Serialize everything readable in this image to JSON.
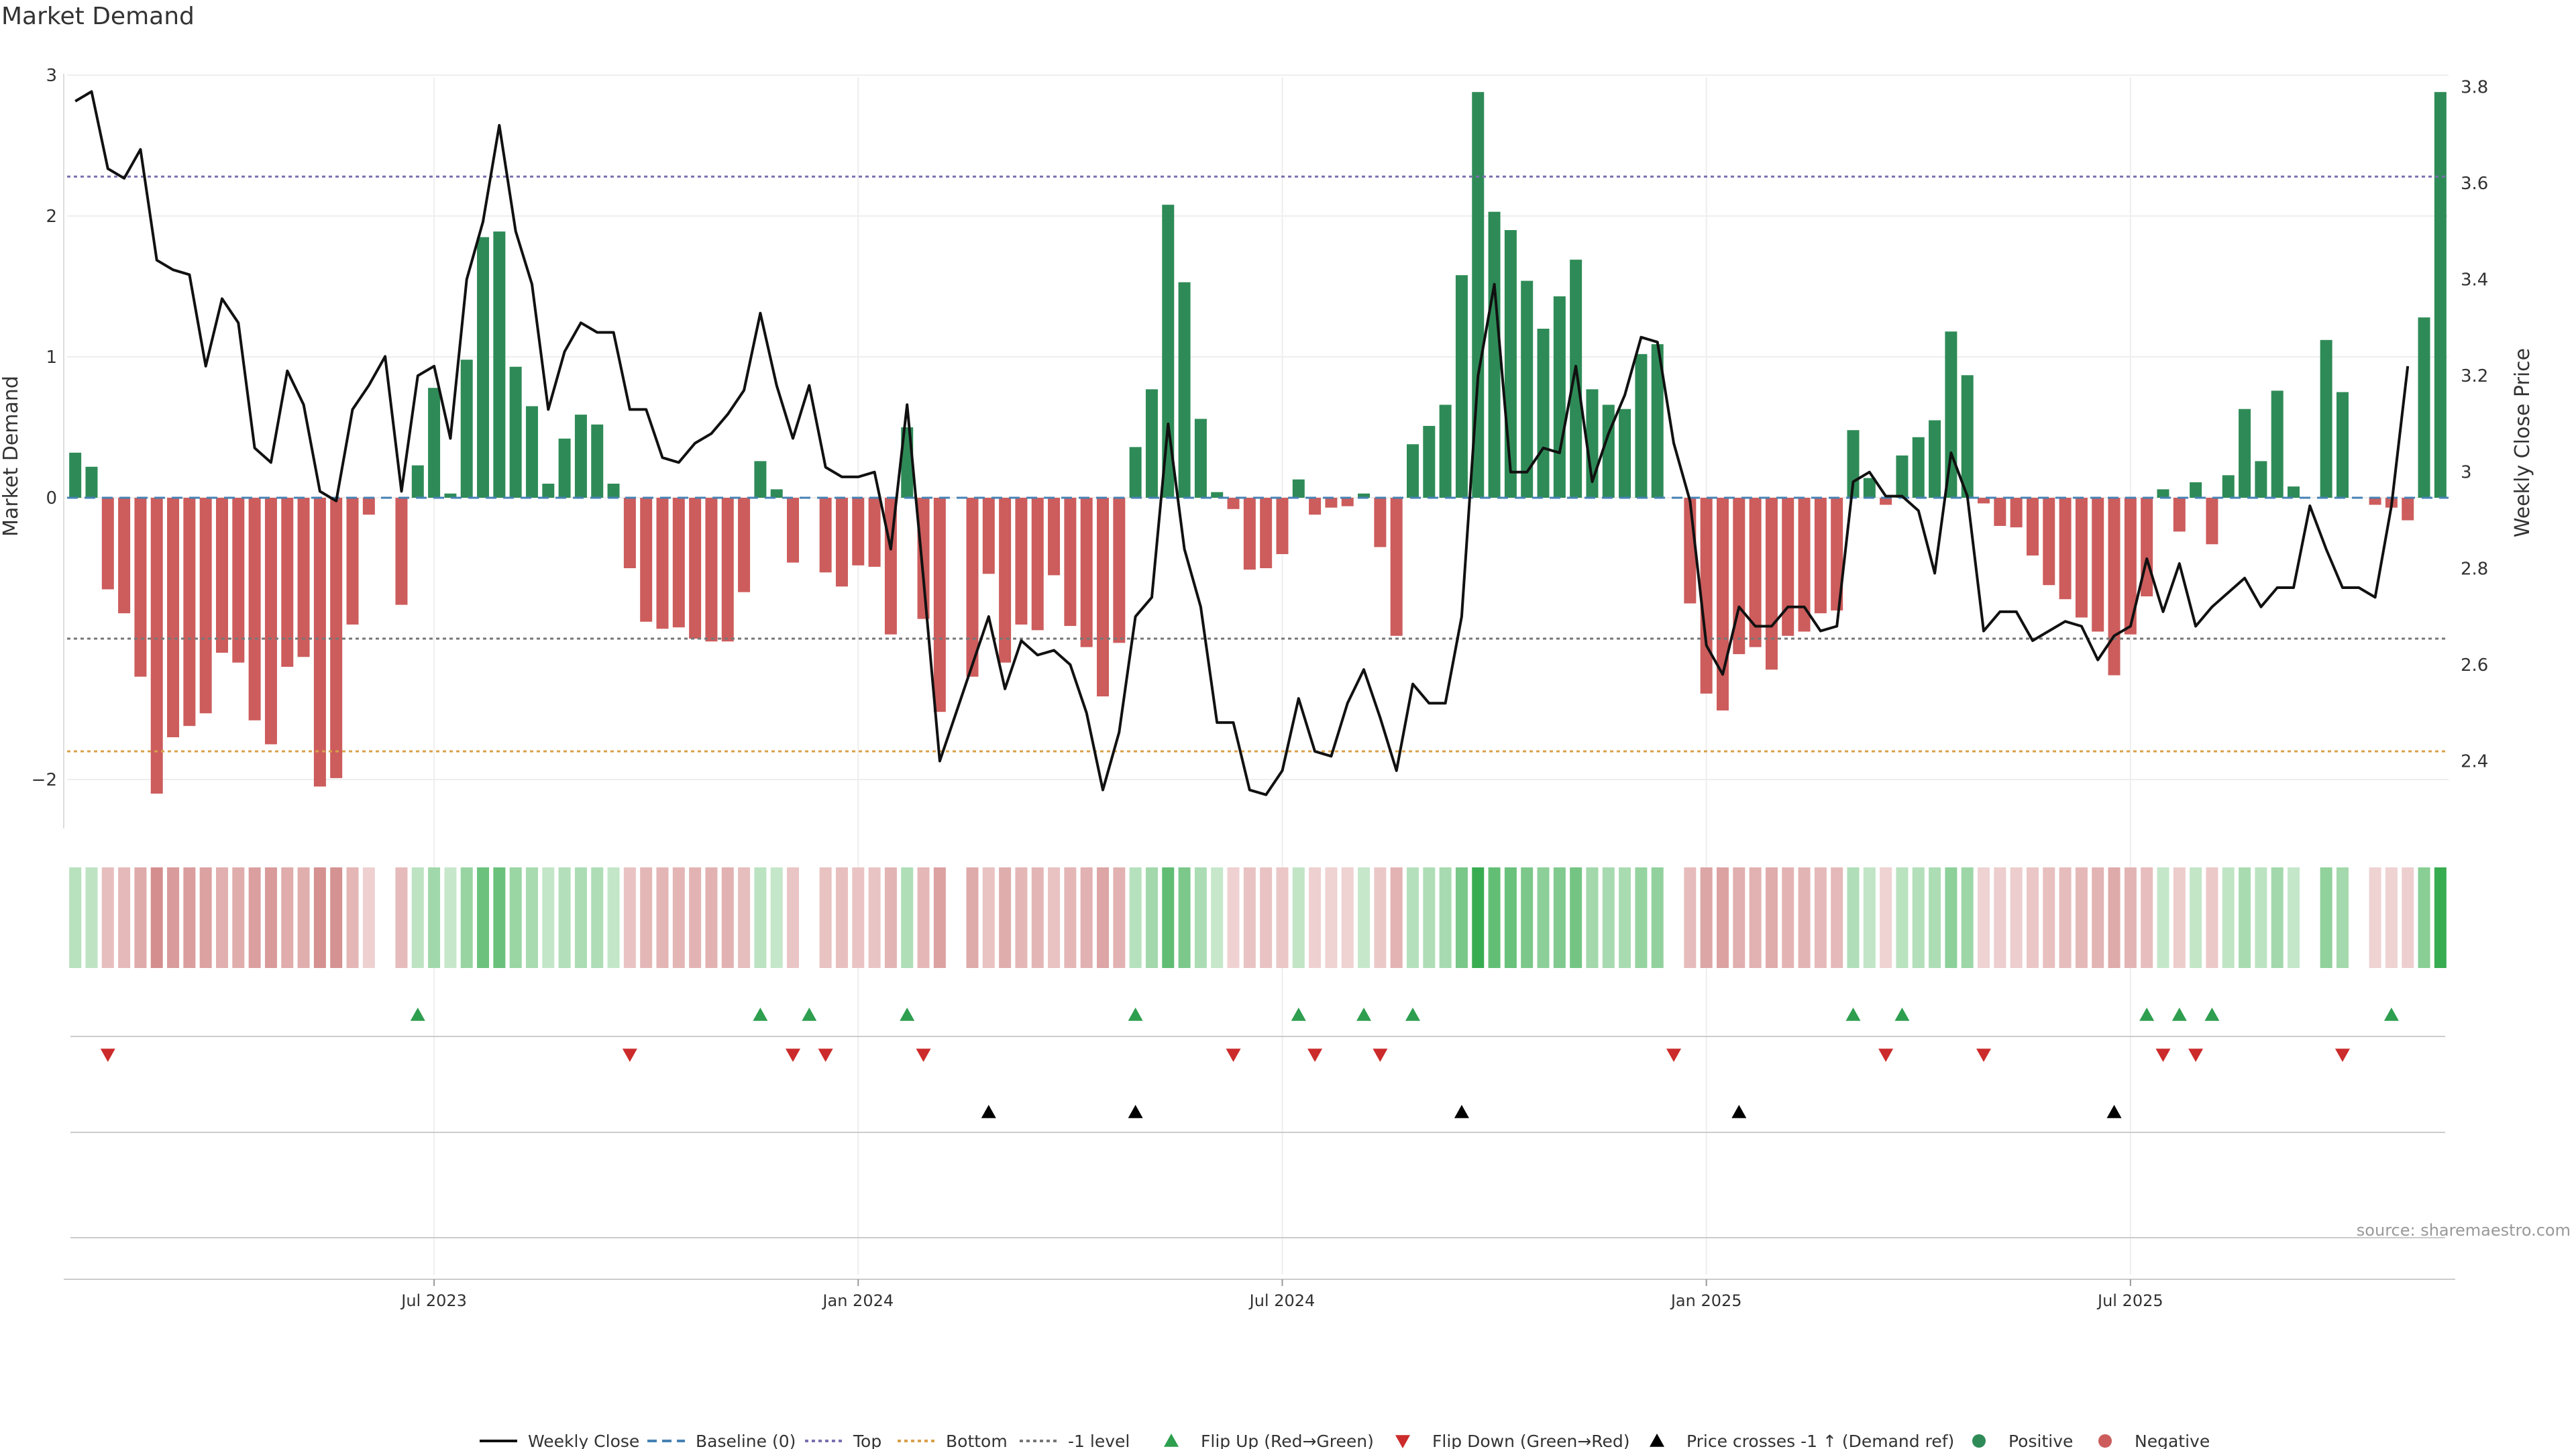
{
  "chart_data": {
    "type": "bar",
    "title": "Market Demand",
    "ylabel_left": "Market Demand",
    "ylabel_right": "Weekly Close Price",
    "left_ylim": [
      -2.4,
      3.0
    ],
    "left_ticks": [
      "3",
      "2",
      "1",
      "0",
      "−2"
    ],
    "left_tick_values": [
      3,
      2,
      1,
      0,
      -2
    ],
    "right_ylim": [
      2.26,
      3.82
    ],
    "right_ticks": [
      "3.8",
      "3.6",
      "3.4",
      "3.2",
      "3",
      "2.8",
      "2.6",
      "2.4"
    ],
    "right_tick_values": [
      3.8,
      3.6,
      3.4,
      3.2,
      3.0,
      2.8,
      2.6,
      2.4
    ],
    "x_ticks": [
      "Jul 2023",
      "Jan 2024",
      "Jul 2024",
      "Jan 2025",
      "Jul 2025"
    ],
    "x_tick_index": [
      22,
      48,
      74,
      100,
      126
    ],
    "levels": {
      "top": 2.28,
      "bottom": -1.8,
      "minus_one": -1.0,
      "baseline": 0
    },
    "demand": [
      0.32,
      0.22,
      -0.65,
      -0.82,
      -1.27,
      -2.1,
      -1.7,
      -1.62,
      -1.53,
      -1.1,
      -1.17,
      -1.58,
      -1.75,
      -1.2,
      -1.13,
      -2.05,
      -1.99,
      -0.9,
      -0.12,
      0.0,
      -0.76,
      0.23,
      0.78,
      0.03,
      0.98,
      1.85,
      1.89,
      0.93,
      0.65,
      0.1,
      0.42,
      0.59,
      0.52,
      0.1,
      -0.5,
      -0.88,
      -0.93,
      -0.92,
      -1.0,
      -1.02,
      -1.02,
      -0.67,
      0.26,
      0.06,
      -0.46,
      0.0,
      -0.53,
      -0.63,
      -0.48,
      -0.49,
      -0.97,
      0.5,
      -0.86,
      -1.52,
      0.0,
      -1.27,
      -0.54,
      -1.17,
      -0.9,
      -0.94,
      -0.55,
      -0.91,
      -1.06,
      -1.41,
      -1.03,
      0.36,
      0.77,
      2.08,
      1.53,
      0.56,
      0.04,
      -0.08,
      -0.51,
      -0.5,
      -0.4,
      0.13,
      -0.12,
      -0.07,
      -0.06,
      0.03,
      -0.35,
      -0.98,
      0.38,
      0.51,
      0.66,
      1.58,
      2.88,
      2.03,
      1.9,
      1.54,
      1.2,
      1.43,
      1.69,
      0.77,
      0.66,
      0.63,
      1.02,
      1.09,
      0.0,
      -0.75,
      -1.39,
      -1.51,
      -1.11,
      -1.06,
      -1.22,
      -0.98,
      -0.95,
      -0.82,
      -0.8,
      0.48,
      0.14,
      -0.05,
      0.3,
      0.43,
      0.55,
      1.18,
      0.87,
      -0.04,
      -0.2,
      -0.21,
      -0.41,
      -0.62,
      -0.72,
      -0.85,
      -0.95,
      -1.26,
      -0.97,
      -0.7,
      0.06,
      -0.24,
      0.11,
      -0.33,
      0.16,
      0.63,
      0.26,
      0.76,
      0.08,
      0.0,
      1.12,
      0.75,
      0.0,
      -0.05,
      -0.07,
      -0.16,
      1.28,
      2.88
    ],
    "close": [
      3.77,
      3.79,
      3.63,
      3.61,
      3.67,
      3.44,
      3.42,
      3.41,
      3.22,
      3.36,
      3.31,
      3.05,
      3.02,
      3.21,
      3.14,
      2.96,
      2.94,
      3.13,
      3.18,
      3.24,
      2.96,
      3.2,
      3.22,
      3.07,
      3.4,
      3.52,
      3.72,
      3.5,
      3.39,
      3.13,
      3.25,
      3.31,
      3.29,
      3.29,
      3.13,
      3.13,
      3.03,
      3.02,
      3.06,
      3.08,
      3.12,
      3.17,
      3.33,
      3.18,
      3.07,
      3.18,
      3.01,
      2.99,
      2.99,
      3.0,
      2.84,
      3.14,
      2.78,
      2.4,
      2.5,
      2.6,
      2.7,
      2.55,
      2.65,
      2.62,
      2.63,
      2.6,
      2.5,
      2.34,
      2.46,
      2.7,
      2.74,
      3.1,
      2.84,
      2.72,
      2.48,
      2.48,
      2.34,
      2.33,
      2.38,
      2.53,
      2.42,
      2.41,
      2.52,
      2.59,
      2.49,
      2.38,
      2.56,
      2.52,
      2.52,
      2.7,
      3.2,
      3.39,
      3.0,
      3.0,
      3.05,
      3.04,
      3.22,
      2.98,
      3.08,
      3.16,
      3.28,
      3.27,
      3.06,
      2.94,
      2.64,
      2.58,
      2.72,
      2.68,
      2.68,
      2.72,
      2.72,
      2.67,
      2.68,
      2.98,
      3.0,
      2.95,
      2.95,
      2.92,
      2.79,
      3.04,
      2.95,
      2.67,
      2.71,
      2.71,
      2.65,
      2.67,
      2.69,
      2.68,
      2.61,
      2.66,
      2.68,
      2.82,
      2.71,
      2.81,
      2.68,
      2.72,
      2.75,
      2.78,
      2.72,
      2.76,
      2.76,
      2.93,
      2.84,
      2.76,
      2.76,
      2.74,
      2.93,
      3.22
    ],
    "flip_up_index": [
      21,
      42,
      45,
      51,
      65,
      75,
      79,
      82,
      109,
      112,
      127,
      129,
      131,
      142
    ],
    "flip_down_index": [
      2,
      34,
      44,
      46,
      52,
      71,
      76,
      80,
      98,
      111,
      117,
      128,
      130,
      139
    ],
    "price_cross_index": [
      56,
      65,
      85,
      102,
      125
    ],
    "legend": [
      "Weekly Close",
      "Baseline (0)",
      "Top",
      "Bottom",
      "-1 level",
      "Flip Up (Red→Green)",
      "Flip Down (Green→Red)",
      "Price crosses -1 ↑ (Demand ref)",
      "Positive",
      "Negative"
    ],
    "source": "source: sharemaestro.com"
  },
  "colors": {
    "positive": "#2e8b57",
    "negative": "#cd5c5c",
    "close": "#111111",
    "top": "#7b6fb0",
    "bottom": "#d9a04a",
    "minus_one": "#777777",
    "baseline": "#4682b4",
    "flip_up": "#2e9e4f",
    "flip_down": "#cc2b2b",
    "cross": "#000000"
  }
}
